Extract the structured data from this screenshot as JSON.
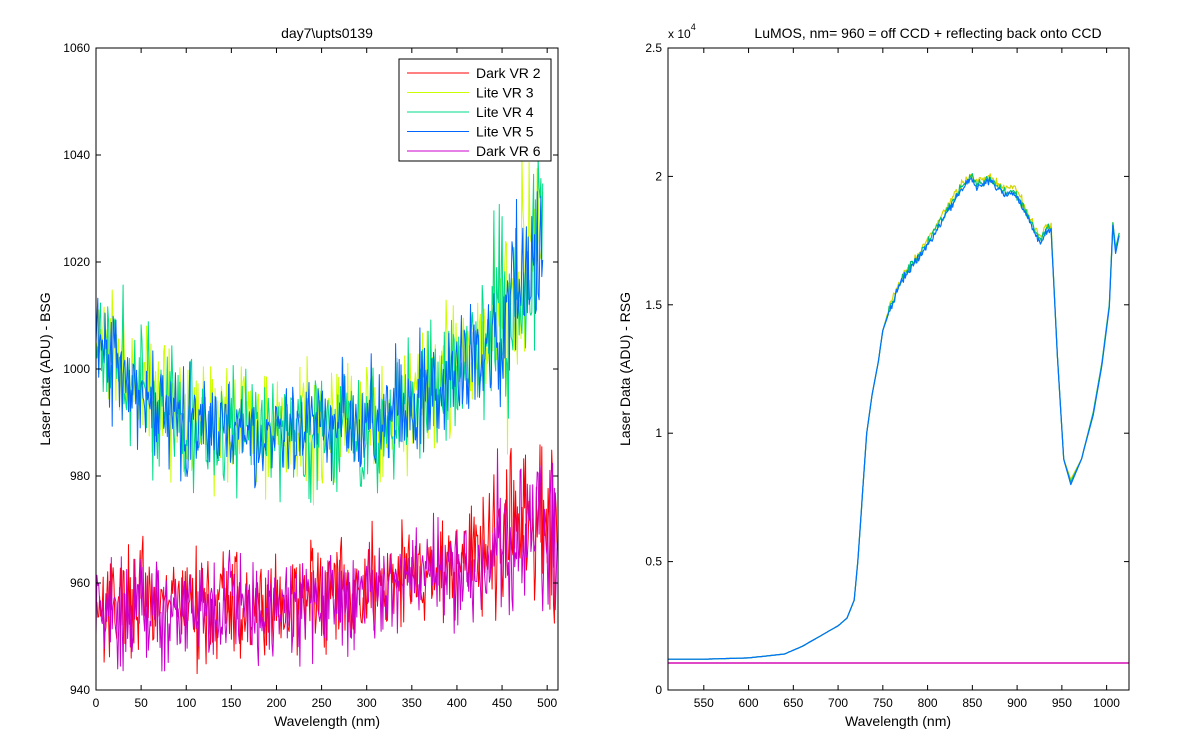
{
  "chart_data": [
    {
      "type": "line",
      "title": "day7\\upts0139",
      "xlabel": "Wavelength (nm)",
      "ylabel": "Laser Data (ADU) - BSG",
      "xlim": [
        0,
        512
      ],
      "ylim": [
        940,
        1060
      ],
      "xticks": [
        0,
        50,
        100,
        150,
        200,
        250,
        300,
        350,
        400,
        450,
        500
      ],
      "yticks": [
        940,
        960,
        980,
        1000,
        1020,
        1040,
        1060
      ],
      "grid": false,
      "legend_position": "top-right",
      "x_range": [
        0,
        511
      ],
      "series": [
        {
          "name": "Dark VR 2",
          "color": "#ff0000",
          "baseline": [
            [
              0,
              957
            ],
            [
              100,
              956
            ],
            [
              200,
              956
            ],
            [
              300,
              959
            ],
            [
              400,
              964
            ],
            [
              450,
              967
            ],
            [
              511,
              972
            ]
          ],
          "noise": 5
        },
        {
          "name": "Lite VR 3",
          "color": "#ccff00",
          "baseline": [
            [
              0,
              1006
            ],
            [
              50,
              997
            ],
            [
              100,
              992
            ],
            [
              150,
              990
            ],
            [
              200,
              990
            ],
            [
              250,
              990
            ],
            [
              300,
              991
            ],
            [
              350,
              994
            ],
            [
              400,
              1000
            ],
            [
              450,
              1009
            ],
            [
              480,
              1020
            ],
            [
              495,
              1025
            ]
          ],
          "noise": 6
        },
        {
          "name": "Lite VR 4",
          "color": "#00dd88",
          "baseline": [
            [
              0,
              1005
            ],
            [
              50,
              996
            ],
            [
              100,
              991
            ],
            [
              150,
              989
            ],
            [
              200,
              988
            ],
            [
              250,
              989
            ],
            [
              300,
              990
            ],
            [
              350,
              993
            ],
            [
              400,
              999
            ],
            [
              450,
              1008
            ],
            [
              480,
              1019
            ],
            [
              495,
              1024
            ]
          ],
          "noise": 6
        },
        {
          "name": "Lite VR 5",
          "color": "#0066ff",
          "baseline": [
            [
              0,
              1004
            ],
            [
              50,
              995
            ],
            [
              100,
              990
            ],
            [
              150,
              988
            ],
            [
              200,
              988
            ],
            [
              250,
              989
            ],
            [
              300,
              990
            ],
            [
              350,
              993
            ],
            [
              400,
              999
            ],
            [
              450,
              1007
            ],
            [
              480,
              1018
            ],
            [
              495,
              1023
            ]
          ],
          "noise": 5
        },
        {
          "name": "Dark VR 6",
          "color": "#cc00cc",
          "baseline": [
            [
              0,
              957
            ],
            [
              100,
              955
            ],
            [
              200,
              955
            ],
            [
              300,
              958
            ],
            [
              400,
              963
            ],
            [
              450,
              966
            ],
            [
              511,
              970
            ]
          ],
          "noise": 5
        }
      ]
    },
    {
      "type": "line",
      "title": "LuMOS, nm= 960 = off CCD + reflecting back onto CCD",
      "xlabel": "Wavelength (nm)",
      "ylabel": "Laser Data (ADU) - RSG",
      "y_exponent_label": "x 10",
      "y_exponent": "4",
      "xlim": [
        510,
        1025
      ],
      "ylim": [
        0,
        2.5
      ],
      "xticks": [
        550,
        600,
        650,
        700,
        750,
        800,
        850,
        900,
        950,
        1000
      ],
      "yticks": [
        0,
        0.5,
        1,
        1.5,
        2,
        2.5
      ],
      "ytick_labels": [
        "0",
        "0.5",
        "1",
        "1.5",
        "2",
        "2.5"
      ],
      "grid": false,
      "series": [
        {
          "color": "#d4d400",
          "points": [
            [
              510,
              0.12
            ],
            [
              550,
              0.12
            ],
            [
              600,
              0.125
            ],
            [
              640,
              0.14
            ],
            [
              660,
              0.17
            ],
            [
              680,
              0.21
            ],
            [
              700,
              0.25
            ],
            [
              710,
              0.28
            ],
            [
              718,
              0.35
            ],
            [
              722,
              0.5
            ],
            [
              727,
              0.75
            ],
            [
              732,
              1.0
            ],
            [
              738,
              1.15
            ],
            [
              745,
              1.28
            ],
            [
              750,
              1.4
            ],
            [
              758,
              1.5
            ],
            [
              765,
              1.56
            ],
            [
              775,
              1.63
            ],
            [
              790,
              1.7
            ],
            [
              805,
              1.78
            ],
            [
              820,
              1.87
            ],
            [
              835,
              1.95
            ],
            [
              848,
              2.01
            ],
            [
              855,
              1.98
            ],
            [
              870,
              2.0
            ],
            [
              885,
              1.95
            ],
            [
              898,
              1.96
            ],
            [
              910,
              1.87
            ],
            [
              920,
              1.8
            ],
            [
              927,
              1.76
            ],
            [
              932,
              1.8
            ],
            [
              938,
              1.8
            ],
            [
              945,
              1.3
            ],
            [
              952,
              0.9
            ],
            [
              960,
              0.82
            ],
            [
              972,
              0.9
            ],
            [
              985,
              1.08
            ],
            [
              995,
              1.28
            ],
            [
              1003,
              1.5
            ],
            [
              1007,
              1.82
            ],
            [
              1010,
              1.72
            ],
            [
              1014,
              1.78
            ]
          ]
        },
        {
          "color": "#00c070",
          "points": [
            [
              510,
              0.12
            ],
            [
              550,
              0.12
            ],
            [
              600,
              0.125
            ],
            [
              640,
              0.14
            ],
            [
              660,
              0.17
            ],
            [
              680,
              0.21
            ],
            [
              700,
              0.25
            ],
            [
              710,
              0.28
            ],
            [
              718,
              0.35
            ],
            [
              722,
              0.5
            ],
            [
              727,
              0.75
            ],
            [
              732,
              1.0
            ],
            [
              738,
              1.15
            ],
            [
              745,
              1.28
            ],
            [
              750,
              1.4
            ],
            [
              758,
              1.49
            ],
            [
              765,
              1.55
            ],
            [
              775,
              1.62
            ],
            [
              790,
              1.69
            ],
            [
              805,
              1.77
            ],
            [
              820,
              1.86
            ],
            [
              835,
              1.94
            ],
            [
              848,
              2.0
            ],
            [
              855,
              1.97
            ],
            [
              870,
              1.99
            ],
            [
              885,
              1.94
            ],
            [
              898,
              1.94
            ],
            [
              910,
              1.86
            ],
            [
              920,
              1.79
            ],
            [
              927,
              1.75
            ],
            [
              932,
              1.8
            ],
            [
              938,
              1.8
            ],
            [
              945,
              1.3
            ],
            [
              952,
              0.9
            ],
            [
              960,
              0.81
            ],
            [
              972,
              0.9
            ],
            [
              985,
              1.08
            ],
            [
              995,
              1.28
            ],
            [
              1003,
              1.5
            ],
            [
              1007,
              1.82
            ],
            [
              1010,
              1.72
            ],
            [
              1014,
              1.78
            ]
          ]
        },
        {
          "color": "#0070ff",
          "points": [
            [
              510,
              0.12
            ],
            [
              550,
              0.12
            ],
            [
              600,
              0.125
            ],
            [
              640,
              0.14
            ],
            [
              660,
              0.17
            ],
            [
              680,
              0.21
            ],
            [
              700,
              0.25
            ],
            [
              710,
              0.28
            ],
            [
              718,
              0.35
            ],
            [
              722,
              0.5
            ],
            [
              727,
              0.75
            ],
            [
              732,
              1.0
            ],
            [
              738,
              1.15
            ],
            [
              745,
              1.28
            ],
            [
              750,
              1.4
            ],
            [
              758,
              1.48
            ],
            [
              765,
              1.55
            ],
            [
              775,
              1.61
            ],
            [
              790,
              1.68
            ],
            [
              805,
              1.76
            ],
            [
              820,
              1.85
            ],
            [
              835,
              1.93
            ],
            [
              848,
              1.99
            ],
            [
              855,
              1.96
            ],
            [
              870,
              1.98
            ],
            [
              885,
              1.93
            ],
            [
              898,
              1.93
            ],
            [
              910,
              1.85
            ],
            [
              920,
              1.78
            ],
            [
              927,
              1.74
            ],
            [
              932,
              1.79
            ],
            [
              938,
              1.79
            ],
            [
              945,
              1.3
            ],
            [
              952,
              0.9
            ],
            [
              960,
              0.8
            ],
            [
              972,
              0.9
            ],
            [
              985,
              1.07
            ],
            [
              995,
              1.27
            ],
            [
              1003,
              1.49
            ],
            [
              1007,
              1.81
            ],
            [
              1010,
              1.7
            ],
            [
              1014,
              1.77
            ]
          ]
        },
        {
          "color": "#ff0000",
          "points": [
            [
              510,
              0.105
            ],
            [
              1025,
              0.105
            ]
          ]
        },
        {
          "color": "#cc00cc",
          "points": [
            [
              510,
              0.105
            ],
            [
              1025,
              0.105
            ]
          ]
        }
      ]
    }
  ]
}
